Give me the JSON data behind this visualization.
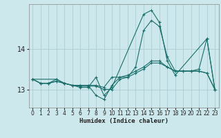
{
  "xlabel": "Humidex (Indice chaleur)",
  "ylabel": "",
  "bg_color": "#cce8ec",
  "grid_color": "#aacdd4",
  "line_color": "#1a6e6a",
  "xlim": [
    -0.5,
    23.5
  ],
  "ylim": [
    12.55,
    15.1
  ],
  "yticks": [
    13,
    14
  ],
  "xticks": [
    0,
    1,
    2,
    3,
    4,
    5,
    6,
    7,
    8,
    9,
    10,
    11,
    12,
    13,
    14,
    15,
    16,
    17,
    18,
    19,
    20,
    21,
    22,
    23
  ],
  "lines": [
    {
      "x": [
        0,
        1,
        2,
        3,
        4,
        5,
        6,
        7,
        8,
        9,
        10,
        11,
        12,
        13,
        14,
        15,
        16,
        17,
        18,
        19,
        20,
        21,
        22,
        23
      ],
      "y": [
        13.25,
        13.15,
        13.15,
        13.25,
        13.15,
        13.1,
        13.1,
        13.1,
        12.85,
        12.75,
        13.1,
        13.3,
        13.3,
        13.55,
        14.45,
        14.7,
        14.55,
        13.8,
        13.45,
        13.45,
        13.45,
        13.5,
        14.25,
        13.0
      ]
    },
    {
      "x": [
        0,
        1,
        2,
        3,
        4,
        5,
        6,
        7,
        8,
        9,
        10,
        11,
        12,
        13,
        14,
        15,
        16,
        17,
        18,
        19,
        20,
        21,
        22,
        23
      ],
      "y": [
        13.25,
        13.15,
        13.15,
        13.2,
        13.15,
        13.1,
        13.1,
        13.1,
        13.1,
        13.05,
        13.3,
        13.3,
        13.35,
        13.45,
        13.55,
        13.7,
        13.7,
        13.55,
        13.45,
        13.45,
        13.45,
        13.45,
        13.4,
        13.0
      ]
    },
    {
      "x": [
        0,
        1,
        2,
        3,
        4,
        5,
        6,
        7,
        8,
        9,
        10,
        11,
        12,
        13,
        14,
        15,
        16,
        17,
        18,
        19,
        20,
        21,
        22,
        23
      ],
      "y": [
        13.25,
        13.15,
        13.15,
        13.2,
        13.15,
        13.1,
        13.08,
        13.08,
        13.08,
        13.0,
        13.0,
        13.25,
        13.3,
        13.4,
        13.5,
        13.65,
        13.65,
        13.55,
        13.45,
        13.45,
        13.45,
        13.45,
        13.4,
        13.0
      ]
    },
    {
      "x": [
        0,
        3,
        4,
        5,
        6,
        7,
        8,
        9,
        10,
        14,
        15,
        16,
        17,
        18,
        22,
        23
      ],
      "y": [
        13.25,
        13.25,
        13.15,
        13.1,
        13.05,
        13.05,
        13.3,
        12.85,
        13.05,
        14.85,
        14.95,
        14.65,
        13.7,
        13.35,
        14.25,
        13.0
      ]
    }
  ]
}
